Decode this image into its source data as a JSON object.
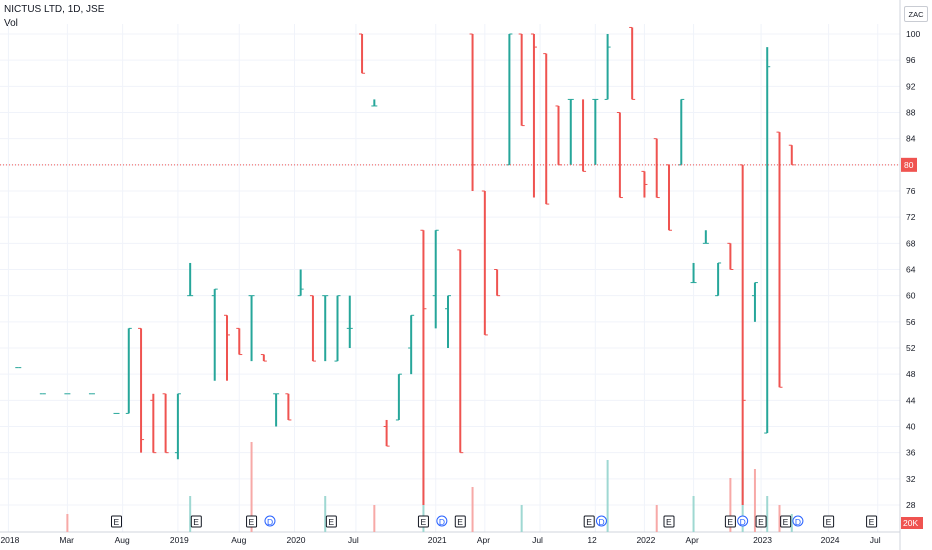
{
  "header": {
    "title": "NICTUS LTD, 1D, JSE",
    "volume_label": "Vol"
  },
  "currency": "ZAC",
  "colors": {
    "up": "#26a69a",
    "down": "#ef5350",
    "last_price": "#ef5350",
    "vol_tag": "#ef5350"
  },
  "chart_data": {
    "type": "ohlc",
    "y_axis": {
      "ticks": [
        100,
        96,
        92,
        88,
        84,
        80,
        76,
        72,
        68,
        64,
        60,
        56,
        52,
        48,
        44,
        40,
        36,
        32,
        28
      ],
      "range": [
        25,
        102
      ]
    },
    "x_axis": {
      "labels": [
        "2018",
        "Mar",
        "Aug",
        "2019",
        "Aug",
        "2020",
        "Jul",
        "2021",
        "Apr",
        "Jul",
        "12",
        "2022",
        "Apr",
        "2023",
        "2024",
        "Jul"
      ]
    },
    "last_price": "80",
    "volume_tag": "20K",
    "grid": true,
    "bars": [
      {
        "t": 0.1,
        "o": 49,
        "h": 49,
        "l": 49,
        "c": 49
      },
      {
        "t": 0.3,
        "o": 45,
        "h": 45,
        "l": 45,
        "c": 45
      },
      {
        "t": 0.5,
        "o": 45,
        "h": 45,
        "l": 45,
        "c": 45
      },
      {
        "t": 0.7,
        "o": 45,
        "h": 45,
        "l": 45,
        "c": 45
      },
      {
        "t": 0.9,
        "o": 42,
        "h": 42,
        "l": 42,
        "c": 42
      },
      {
        "t": 1.0,
        "o": 42,
        "h": 55,
        "l": 42,
        "c": 55
      },
      {
        "t": 1.1,
        "o": 55,
        "h": 55,
        "l": 36,
        "c": 38
      },
      {
        "t": 1.2,
        "o": 44,
        "h": 45,
        "l": 36,
        "c": 36
      },
      {
        "t": 1.3,
        "o": 45,
        "h": 45,
        "l": 36,
        "c": 36
      },
      {
        "t": 1.4,
        "o": 36,
        "h": 45,
        "l": 35,
        "c": 45
      },
      {
        "t": 1.5,
        "o": 60,
        "h": 65,
        "l": 60,
        "c": 60
      },
      {
        "t": 1.7,
        "o": 60,
        "h": 61,
        "l": 47,
        "c": 61
      },
      {
        "t": 1.8,
        "o": 57,
        "h": 57,
        "l": 47,
        "c": 54
      },
      {
        "t": 1.9,
        "o": 55,
        "h": 55,
        "l": 51,
        "c": 51
      },
      {
        "t": 2.0,
        "o": 60,
        "h": 60,
        "l": 50,
        "c": 60
      },
      {
        "t": 2.1,
        "o": 51,
        "h": 51,
        "l": 50,
        "c": 50
      },
      {
        "t": 2.2,
        "o": 45,
        "h": 45,
        "l": 40,
        "c": 45
      },
      {
        "t": 2.3,
        "o": 45,
        "h": 45,
        "l": 41,
        "c": 41
      },
      {
        "t": 2.4,
        "o": 60,
        "h": 64,
        "l": 60,
        "c": 61
      },
      {
        "t": 2.5,
        "o": 60,
        "h": 60,
        "l": 50,
        "c": 50
      },
      {
        "t": 2.6,
        "o": 60,
        "h": 60,
        "l": 50,
        "c": 60
      },
      {
        "t": 2.7,
        "o": 50,
        "h": 60,
        "l": 50,
        "c": 60
      },
      {
        "t": 2.8,
        "o": 55,
        "h": 60,
        "l": 52,
        "c": 55
      },
      {
        "t": 2.9,
        "o": 100,
        "h": 100,
        "l": 94,
        "c": 94
      },
      {
        "t": 3.0,
        "o": 89,
        "h": 90,
        "l": 89,
        "c": 89
      },
      {
        "t": 3.1,
        "o": 40,
        "h": 41,
        "l": 37,
        "c": 37
      },
      {
        "t": 3.2,
        "o": 41,
        "h": 48,
        "l": 41,
        "c": 48
      },
      {
        "t": 3.3,
        "o": 52,
        "h": 57,
        "l": 48,
        "c": 57
      },
      {
        "t": 3.4,
        "o": 70,
        "h": 70,
        "l": 28,
        "c": 58
      },
      {
        "t": 3.5,
        "o": 60,
        "h": 70,
        "l": 55,
        "c": 70
      },
      {
        "t": 3.6,
        "o": 58,
        "h": 60,
        "l": 52,
        "c": 60
      },
      {
        "t": 3.7,
        "o": 67,
        "h": 67,
        "l": 36,
        "c": 36
      },
      {
        "t": 3.8,
        "o": 100,
        "h": 100,
        "l": 76,
        "c": 80
      },
      {
        "t": 3.9,
        "o": 76,
        "h": 76,
        "l": 54,
        "c": 54
      },
      {
        "t": 4.0,
        "o": 64,
        "h": 64,
        "l": 60,
        "c": 60
      },
      {
        "t": 4.1,
        "o": 80,
        "h": 100,
        "l": 80,
        "c": 100
      },
      {
        "t": 4.2,
        "o": 100,
        "h": 100,
        "l": 86,
        "c": 86
      },
      {
        "t": 4.3,
        "o": 100,
        "h": 100,
        "l": 75,
        "c": 98
      },
      {
        "t": 4.4,
        "o": 97,
        "h": 97,
        "l": 74,
        "c": 74
      },
      {
        "t": 4.5,
        "o": 89,
        "h": 89,
        "l": 80,
        "c": 80
      },
      {
        "t": 4.6,
        "o": 90,
        "h": 90,
        "l": 80,
        "c": 90
      },
      {
        "t": 4.7,
        "o": 80,
        "h": 90,
        "l": 79,
        "c": 79
      },
      {
        "t": 4.8,
        "o": 90,
        "h": 90,
        "l": 80,
        "c": 90
      },
      {
        "t": 4.9,
        "o": 90,
        "h": 100,
        "l": 90,
        "c": 98
      },
      {
        "t": 5.0,
        "o": 88,
        "h": 88,
        "l": 75,
        "c": 75
      },
      {
        "t": 5.1,
        "o": 101,
        "h": 101,
        "l": 90,
        "c": 90
      },
      {
        "t": 5.2,
        "o": 79,
        "h": 79,
        "l": 75,
        "c": 77
      },
      {
        "t": 5.3,
        "o": 84,
        "h": 84,
        "l": 75,
        "c": 75
      },
      {
        "t": 5.4,
        "o": 80,
        "h": 80,
        "l": 70,
        "c": 70
      },
      {
        "t": 5.5,
        "o": 80,
        "h": 90,
        "l": 80,
        "c": 90
      },
      {
        "t": 5.6,
        "o": 62,
        "h": 65,
        "l": 62,
        "c": 62
      },
      {
        "t": 5.7,
        "o": 68,
        "h": 70,
        "l": 68,
        "c": 68
      },
      {
        "t": 5.8,
        "o": 60,
        "h": 65,
        "l": 60,
        "c": 65
      },
      {
        "t": 5.9,
        "o": 68,
        "h": 68,
        "l": 64,
        "c": 64
      },
      {
        "t": 6.0,
        "o": 80,
        "h": 80,
        "l": 28,
        "c": 44
      },
      {
        "t": 6.1,
        "o": 60,
        "h": 62,
        "l": 56,
        "c": 62
      },
      {
        "t": 6.2,
        "o": 39,
        "h": 98,
        "l": 39,
        "c": 95
      },
      {
        "t": 6.3,
        "o": 85,
        "h": 85,
        "l": 46,
        "c": 46
      },
      {
        "t": 6.4,
        "o": 83,
        "h": 83,
        "l": 80,
        "c": 80
      }
    ],
    "volume_bars": [
      {
        "t": 0.5,
        "v": 0.2,
        "dir": "down"
      },
      {
        "t": 1.5,
        "v": 0.4,
        "dir": "up"
      },
      {
        "t": 2.0,
        "v": 1.0,
        "dir": "down"
      },
      {
        "t": 2.6,
        "v": 0.4,
        "dir": "up"
      },
      {
        "t": 3.0,
        "v": 0.3,
        "dir": "down"
      },
      {
        "t": 3.4,
        "v": 0.9,
        "dir": "up"
      },
      {
        "t": 3.8,
        "v": 0.5,
        "dir": "down"
      },
      {
        "t": 4.2,
        "v": 0.3,
        "dir": "up"
      },
      {
        "t": 4.9,
        "v": 0.8,
        "dir": "up"
      },
      {
        "t": 5.3,
        "v": 0.3,
        "dir": "down"
      },
      {
        "t": 5.6,
        "v": 0.4,
        "dir": "up"
      },
      {
        "t": 5.9,
        "v": 0.6,
        "dir": "down"
      },
      {
        "t": 6.0,
        "v": 0.9,
        "dir": "up"
      },
      {
        "t": 6.1,
        "v": 0.7,
        "dir": "down"
      },
      {
        "t": 6.2,
        "v": 0.4,
        "dir": "up"
      },
      {
        "t": 6.3,
        "v": 0.3,
        "dir": "down"
      },
      {
        "t": 6.4,
        "v": 0.2,
        "dir": "up"
      }
    ],
    "events": [
      {
        "t": 0.9,
        "type": "E"
      },
      {
        "t": 1.55,
        "type": "E"
      },
      {
        "t": 2.0,
        "type": "E"
      },
      {
        "t": 2.15,
        "type": "D"
      },
      {
        "t": 2.65,
        "type": "E"
      },
      {
        "t": 3.4,
        "type": "E"
      },
      {
        "t": 3.55,
        "type": "D"
      },
      {
        "t": 3.7,
        "type": "E"
      },
      {
        "t": 4.75,
        "type": "E"
      },
      {
        "t": 4.85,
        "type": "D"
      },
      {
        "t": 5.4,
        "type": "E"
      },
      {
        "t": 5.9,
        "type": "E"
      },
      {
        "t": 6.0,
        "type": "D"
      },
      {
        "t": 6.15,
        "type": "E"
      },
      {
        "t": 6.35,
        "type": "E"
      },
      {
        "t": 6.45,
        "type": "D"
      },
      {
        "t": 6.7,
        "type": "E"
      },
      {
        "t": 7.05,
        "type": "E"
      }
    ]
  }
}
